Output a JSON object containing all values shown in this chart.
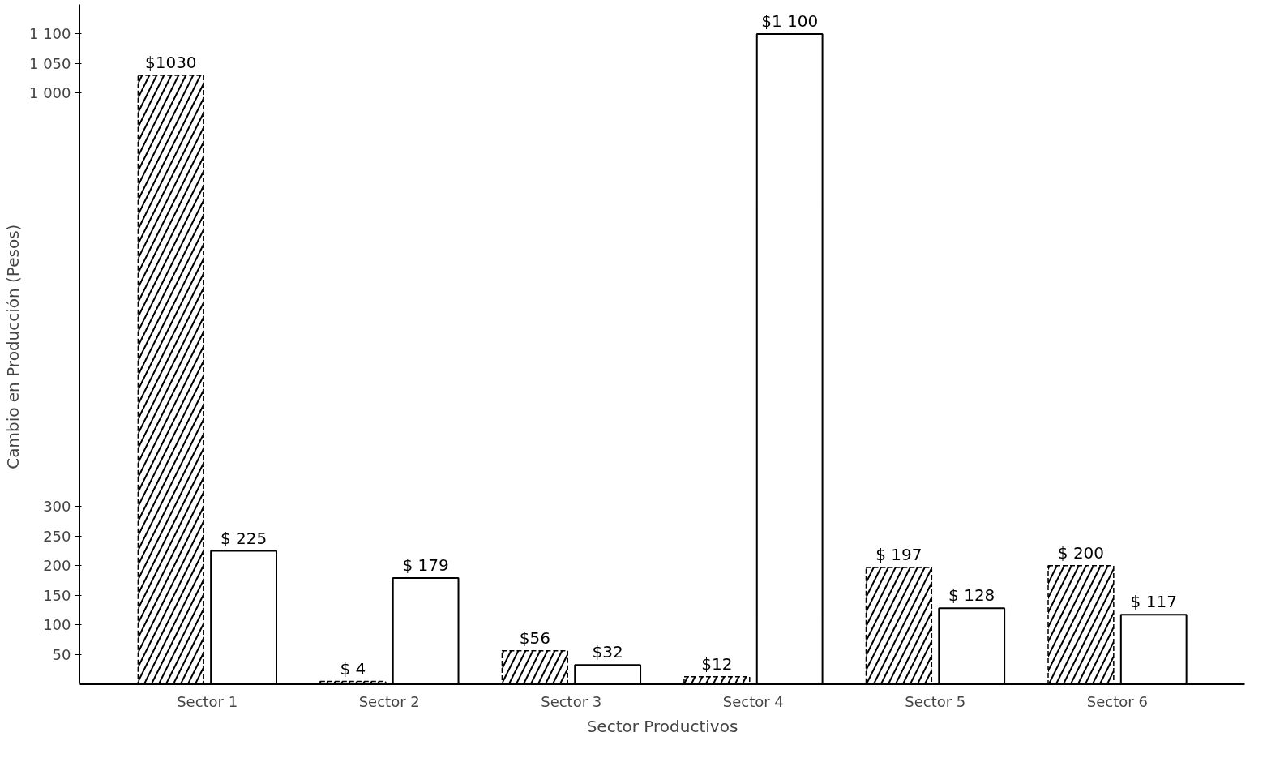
{
  "chart_data": {
    "type": "bar",
    "ylabel": "Cambio en Producción  (Pesos)",
    "xlabel": "Sector Productivos",
    "categories": [
      "Sector 1",
      "Sector 2",
      "Sector 3",
      "Sector 4",
      "Sector 5",
      "Sector 6"
    ],
    "series": [
      {
        "color": "#000000",
        "values": [
          1030,
          4,
          56,
          12,
          197,
          200
        ],
        "value_labels": [
          "$1030",
          "$ 4",
          "$56",
          "$12",
          "$ 197",
          "$ 200"
        ]
      },
      {
        "color": "#ffffff",
        "values": [
          225,
          179,
          32,
          1100,
          128,
          117
        ],
        "value_labels": [
          "$ 225",
          "$ 179",
          "$32",
          "$1 100",
          "$ 128",
          "$ 117"
        ]
      }
    ],
    "ylim": [
      0,
      1150
    ],
    "yticks": [
      50,
      100,
      150,
      200,
      250,
      300,
      {
        "value": 1000,
        "label": "1 000"
      },
      {
        "value": 1050,
        "label": "1 050"
      },
      {
        "value": 1100,
        "label": "1 100"
      }
    ],
    "grid": false
  }
}
